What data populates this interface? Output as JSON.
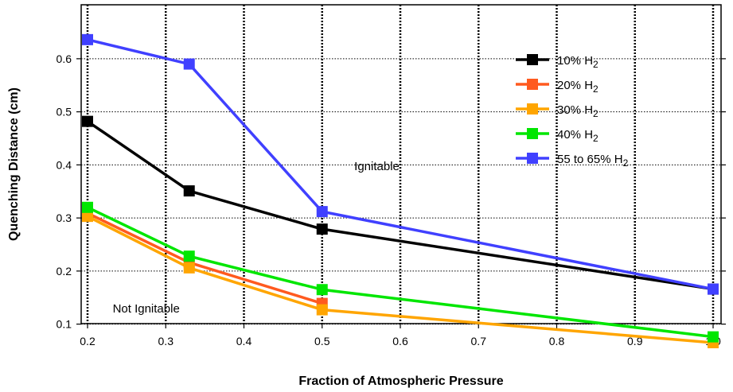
{
  "chart_data": {
    "type": "line",
    "title": "",
    "xlabel": "Fraction of Atmospheric Pressure",
    "ylabel": "Quenching Distance (cm)",
    "xlim": [
      0.2,
      1.0
    ],
    "ylim": [
      0.05,
      0.65
    ],
    "xticks": [
      "0.2",
      "0.3",
      "0.4",
      "0.5",
      "0.6",
      "0.7",
      "0.8",
      "0.9",
      "1.0"
    ],
    "yticks": [
      "0.1",
      "0.2",
      "0.3",
      "0.4",
      "0.5",
      "0.6"
    ],
    "grid": "x: vertical dotted lines, y: horizontal dotted lines",
    "legend_position": "top-right",
    "annotations": [
      {
        "text": "Ignitable",
        "x": 0.57,
        "y": 0.39
      },
      {
        "text": "Not Ignitable",
        "x": 0.275,
        "y": 0.122
      }
    ],
    "series": [
      {
        "name": "10% H",
        "subscript": "2",
        "color": "#000000",
        "x": [
          0.2,
          0.33,
          0.5,
          1.0
        ],
        "y": [
          0.482,
          0.351,
          0.279,
          0.166
        ]
      },
      {
        "name": "20% H",
        "subscript": "2",
        "color": "#ff5a1f",
        "x": [
          0.2,
          0.33,
          0.5
        ],
        "y": [
          0.309,
          0.216,
          0.139
        ]
      },
      {
        "name": "30% H",
        "subscript": "2",
        "color": "#ffa500",
        "x": [
          0.2,
          0.33,
          0.5,
          1.0
        ],
        "y": [
          0.303,
          0.206,
          0.127,
          0.065
        ]
      },
      {
        "name": "40% H",
        "subscript": "2",
        "color": "#00e600",
        "x": [
          0.2,
          0.33,
          0.5,
          1.0
        ],
        "y": [
          0.32,
          0.228,
          0.165,
          0.076
        ]
      },
      {
        "name": "55 to 65% H",
        "subscript": "2",
        "color": "#4040ff",
        "x": [
          0.2,
          0.33,
          0.5,
          1.0
        ],
        "y": [
          0.636,
          0.59,
          0.312,
          0.166
        ]
      }
    ]
  }
}
